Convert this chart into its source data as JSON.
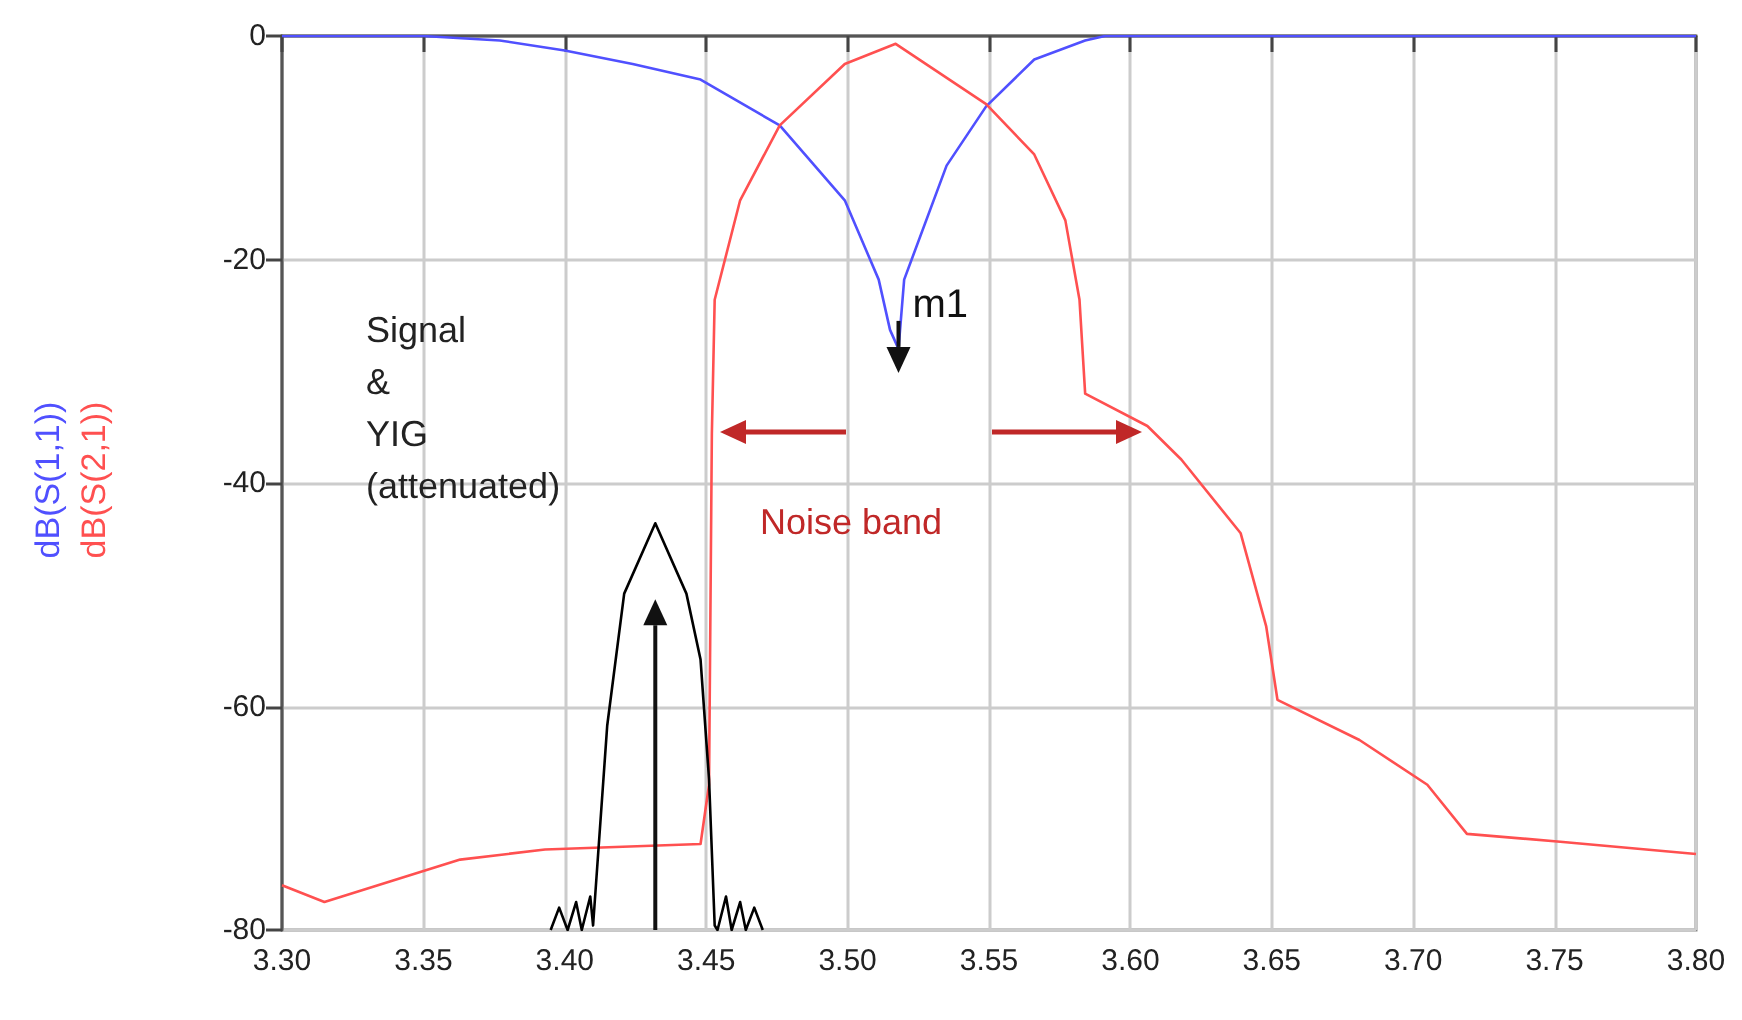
{
  "chart_data": {
    "type": "line",
    "x": [
      3.3,
      3.35,
      3.377,
      3.4,
      3.424,
      3.448,
      3.476,
      3.499,
      3.511,
      3.515,
      3.518,
      3.52,
      3.535,
      3.549,
      3.566,
      3.584,
      3.591,
      3.65,
      3.7,
      3.8
    ],
    "series": [
      {
        "name": "dB(S(1,1))",
        "color": "#5050ff",
        "values": [
          0,
          0,
          -0.4,
          -1.3,
          -2.5,
          -3.9,
          -8,
          -14.7,
          -21.8,
          -26.3,
          -28,
          -21.8,
          -11.6,
          -6.3,
          -2.1,
          -0.4,
          0,
          0,
          0,
          0
        ]
      },
      {
        "name": "dB(S(2,1))",
        "color": "#ff5050",
        "x": [
          3.3,
          3.315,
          3.363,
          3.393,
          3.448,
          3.451,
          3.452,
          3.453,
          3.462,
          3.476,
          3.499,
          3.517,
          3.549,
          3.566,
          3.577,
          3.582,
          3.584,
          3.606,
          3.618,
          3.639,
          3.648,
          3.652,
          3.681,
          3.705,
          3.719,
          3.752,
          3.8
        ],
        "values": [
          -76,
          -77.5,
          -73.7,
          -72.8,
          -72.3,
          -67,
          -35.6,
          -23.6,
          -14.7,
          -8,
          -2.5,
          -0.7,
          -6.1,
          -10.6,
          -16.5,
          -23.6,
          -32,
          -34.9,
          -37.9,
          -44.5,
          -52.8,
          -59.4,
          -63,
          -67,
          -71.4,
          -72.1,
          -73.2
        ]
      },
      {
        "color": "#000000",
        "x": [
          3.395,
          3.398,
          3.401,
          3.404,
          3.406,
          3.409,
          3.41,
          3.415,
          3.421,
          3.432,
          3.443,
          3.448,
          3.451,
          3.453,
          3.454,
          3.457,
          3.459,
          3.462,
          3.464,
          3.467,
          3.47
        ],
        "values": [
          -80,
          -78,
          -80,
          -77.5,
          -80,
          -77,
          -79.6,
          -61.7,
          -49.9,
          -43.6,
          -49.9,
          -55.8,
          -66.5,
          -79.6,
          -80,
          -77,
          -80,
          -77.5,
          -80,
          -78,
          -80
        ]
      }
    ],
    "xlim": [
      3.3,
      3.8
    ],
    "xticks": [
      {
        "value": 3.3,
        "label": "3.30"
      },
      3.35,
      {
        "value": 3.4,
        "label": "3.40"
      },
      3.45,
      {
        "value": 3.5,
        "label": "3.50"
      },
      3.55,
      {
        "value": 3.6,
        "label": "3.60"
      },
      3.65,
      {
        "value": 3.7,
        "label": "3.70"
      },
      3.75,
      {
        "value": 3.8,
        "label": "3.80"
      }
    ],
    "ylim": [
      -80,
      0
    ],
    "yticks": [
      -80,
      -60,
      -40,
      -20,
      0
    ],
    "grid": true,
    "marker": "none",
    "annotations": [
      "Signal\n&\nYIG\n(attenuated)",
      "Noise band",
      {
        "text": "m1",
        "x": 3.518,
        "y": -28
      }
    ]
  }
}
